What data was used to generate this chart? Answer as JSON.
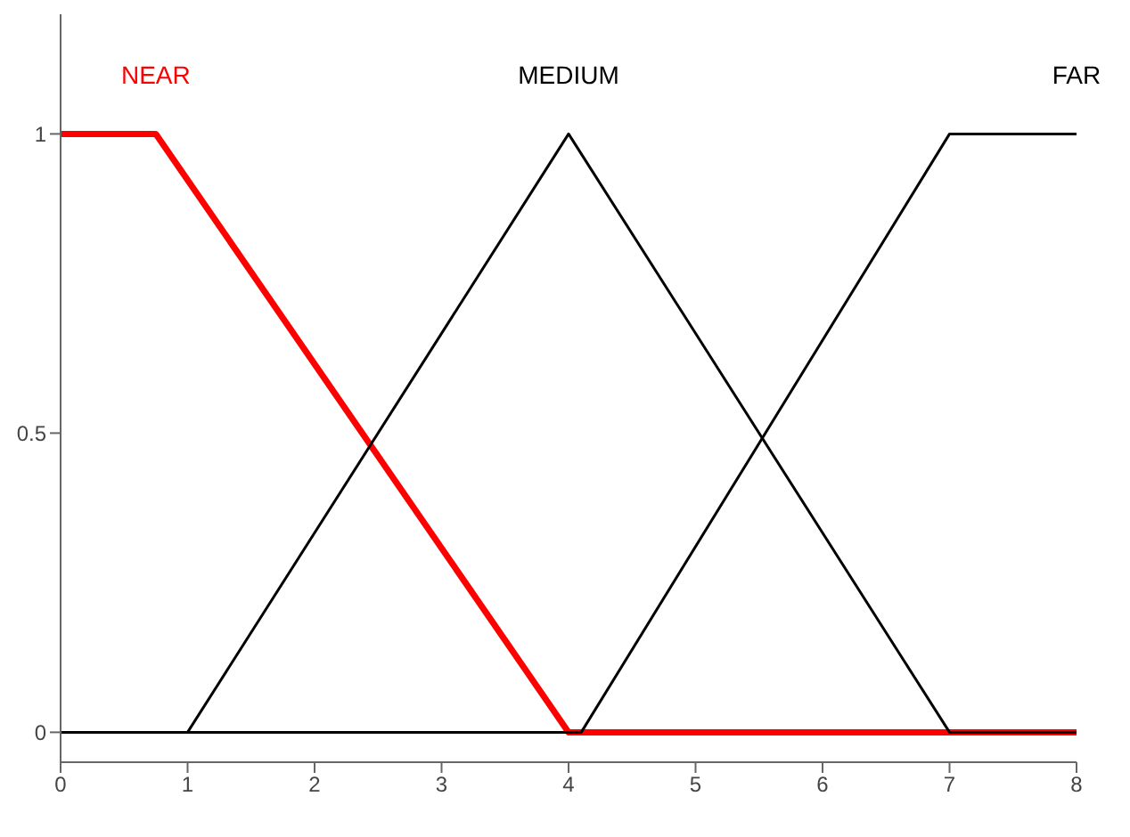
{
  "chart_data": {
    "type": "line",
    "series": [
      {
        "name": "NEAR",
        "color": "#ff0000",
        "x": [
          0,
          0.75,
          4,
          8
        ],
        "values": [
          1,
          1,
          0,
          0
        ]
      },
      {
        "name": "MEDIUM",
        "color": "#000000",
        "x": [
          0,
          1,
          4,
          7,
          8
        ],
        "values": [
          0,
          0,
          1,
          0,
          0
        ]
      },
      {
        "name": "FAR",
        "color": "#000000",
        "x": [
          0,
          4.1,
          7,
          8
        ],
        "values": [
          0,
          0,
          1,
          1
        ]
      }
    ],
    "xlim": [
      0,
      8
    ],
    "xticks": [
      0,
      1,
      2,
      3,
      4,
      5,
      6,
      7,
      8
    ],
    "ylim": [
      -0.05,
      1.2
    ],
    "yticks": [
      0,
      0.5,
      1
    ],
    "grid": false,
    "legend": false,
    "marker": "none",
    "line_style": "solid"
  }
}
